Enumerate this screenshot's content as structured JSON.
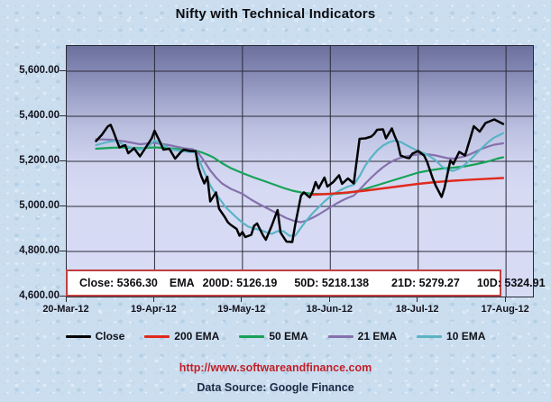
{
  "title": "Nifty with Technical Indicators",
  "info_box": {
    "close": "Close: 5366.30",
    "ema": "EMA",
    "d200": "200D: 5126.19",
    "d50": "50D: 5218.138",
    "d21": "21D: 5279.27",
    "d10": "10D: 5324.91"
  },
  "legend": {
    "items": [
      {
        "label": "Close",
        "color": "#000000"
      },
      {
        "label": "200 EMA",
        "color": "#e02a1d"
      },
      {
        "label": "50 EMA",
        "color": "#17a258"
      },
      {
        "label": "21 EMA",
        "color": "#8571ad"
      },
      {
        "label": "10 EMA",
        "color": "#5ab4c5"
      }
    ]
  },
  "footer": {
    "url": "http://www.softwareandfinance.com",
    "source": "Data Source: Google Finance"
  },
  "colors": {
    "grid": "#2b2b38",
    "plot_border": "#2b2b38",
    "info_border": "#c04040",
    "title_text": "#0c0c10",
    "axis_text": "#13131e",
    "url_text": "#c01f28",
    "source_text": "#1e2a46"
  },
  "chart_data": {
    "type": "line",
    "title": "Nifty with Technical Indicators",
    "xlabel": "",
    "ylabel": "",
    "grid": true,
    "legend_position": "bottom",
    "x_axis": {
      "tick_labels": [
        "20-Mar-12",
        "19-Apr-12",
        "19-May-12",
        "18-Jun-12",
        "18-Jul-12",
        "17-Aug-12"
      ],
      "tick_days": [
        0,
        30,
        60,
        90,
        120,
        150
      ],
      "max_day": 159.2
    },
    "y_axis": {
      "ticks": [
        5600,
        5400,
        5200,
        5000,
        4800,
        4600
      ],
      "tick_labels": [
        "5,600.00",
        "5,400.00",
        "5,200.00",
        "5,000.00",
        "4,800.00",
        "4,600.00"
      ],
      "min": 4600,
      "top_value": 5712
    },
    "series": [
      {
        "name": "50 EMA",
        "color": "#17a258",
        "width": 2.2,
        "points": [
          [
            10,
            5256
          ],
          [
            15,
            5260
          ],
          [
            20,
            5262
          ],
          [
            25,
            5258
          ],
          [
            30,
            5262
          ],
          [
            35,
            5258
          ],
          [
            40,
            5252
          ],
          [
            44,
            5248
          ],
          [
            46,
            5240
          ],
          [
            48,
            5230
          ],
          [
            50,
            5218
          ],
          [
            53,
            5192
          ],
          [
            56,
            5170
          ],
          [
            60,
            5148
          ],
          [
            64,
            5128
          ],
          [
            68,
            5110
          ],
          [
            71,
            5096
          ],
          [
            74,
            5082
          ],
          [
            77,
            5070
          ],
          [
            80,
            5062
          ],
          [
            84,
            5056
          ],
          [
            88,
            5054
          ],
          [
            92,
            5056
          ],
          [
            96,
            5060
          ],
          [
            100,
            5070
          ],
          [
            104,
            5086
          ],
          [
            108,
            5102
          ],
          [
            112,
            5118
          ],
          [
            116,
            5134
          ],
          [
            120,
            5150
          ],
          [
            124,
            5160
          ],
          [
            128,
            5168
          ],
          [
            132,
            5172
          ],
          [
            136,
            5178
          ],
          [
            140,
            5188
          ],
          [
            144,
            5200
          ],
          [
            147,
            5212
          ],
          [
            149,
            5218
          ]
        ]
      },
      {
        "name": "21 EMA",
        "color": "#8571ad",
        "width": 2.2,
        "points": [
          [
            10,
            5298
          ],
          [
            15,
            5296
          ],
          [
            20,
            5288
          ],
          [
            25,
            5276
          ],
          [
            30,
            5282
          ],
          [
            35,
            5272
          ],
          [
            40,
            5258
          ],
          [
            43,
            5254
          ],
          [
            45,
            5236
          ],
          [
            47,
            5200
          ],
          [
            49,
            5160
          ],
          [
            51,
            5128
          ],
          [
            53,
            5102
          ],
          [
            56,
            5078
          ],
          [
            60,
            5056
          ],
          [
            63,
            5030
          ],
          [
            66,
            5008
          ],
          [
            69,
            4988
          ],
          [
            72,
            4968
          ],
          [
            75,
            4948
          ],
          [
            78,
            4934
          ],
          [
            80,
            4930
          ],
          [
            82,
            4938
          ],
          [
            84,
            4950
          ],
          [
            86,
            4964
          ],
          [
            88,
            4980
          ],
          [
            90,
            4996
          ],
          [
            92,
            5012
          ],
          [
            94,
            5026
          ],
          [
            96,
            5038
          ],
          [
            98,
            5048
          ],
          [
            100,
            5074
          ],
          [
            102,
            5102
          ],
          [
            104,
            5128
          ],
          [
            106,
            5152
          ],
          [
            108,
            5174
          ],
          [
            110,
            5192
          ],
          [
            112,
            5206
          ],
          [
            114,
            5216
          ],
          [
            116,
            5222
          ],
          [
            118,
            5227
          ],
          [
            120,
            5231
          ],
          [
            122,
            5232
          ],
          [
            124,
            5230
          ],
          [
            126,
            5226
          ],
          [
            128,
            5220
          ],
          [
            130,
            5214
          ],
          [
            132,
            5212
          ],
          [
            134,
            5217
          ],
          [
            136,
            5223
          ],
          [
            138,
            5233
          ],
          [
            140,
            5245
          ],
          [
            142,
            5257
          ],
          [
            144,
            5266
          ],
          [
            146,
            5274
          ],
          [
            149,
            5280
          ]
        ]
      },
      {
        "name": "10 EMA",
        "color": "#5ab4c5",
        "width": 2.2,
        "points": [
          [
            10,
            5272
          ],
          [
            14,
            5286
          ],
          [
            17,
            5292
          ],
          [
            20,
            5268
          ],
          [
            23,
            5258
          ],
          [
            25,
            5252
          ],
          [
            28,
            5268
          ],
          [
            30,
            5292
          ],
          [
            33,
            5272
          ],
          [
            36,
            5252
          ],
          [
            39,
            5246
          ],
          [
            42,
            5242
          ],
          [
            44,
            5240
          ],
          [
            45,
            5212
          ],
          [
            46,
            5182
          ],
          [
            47,
            5152
          ],
          [
            48,
            5122
          ],
          [
            49,
            5094
          ],
          [
            50,
            5072
          ],
          [
            52,
            5036
          ],
          [
            53,
            5020
          ],
          [
            54,
            5000
          ],
          [
            56,
            4975
          ],
          [
            58,
            4950
          ],
          [
            60,
            4928
          ],
          [
            62,
            4910
          ],
          [
            64,
            4902
          ],
          [
            66,
            4896
          ],
          [
            68,
            4886
          ],
          [
            70,
            4878
          ],
          [
            72,
            4890
          ],
          [
            74,
            4890
          ],
          [
            76,
            4870
          ],
          [
            78,
            4870
          ],
          [
            79,
            4888
          ],
          [
            80,
            4906
          ],
          [
            82,
            4940
          ],
          [
            84,
            4970
          ],
          [
            86,
            4996
          ],
          [
            88,
            5022
          ],
          [
            90,
            5044
          ],
          [
            92,
            5062
          ],
          [
            94,
            5076
          ],
          [
            96,
            5088
          ],
          [
            98,
            5096
          ],
          [
            100,
            5134
          ],
          [
            102,
            5182
          ],
          [
            104,
            5218
          ],
          [
            106,
            5248
          ],
          [
            108,
            5270
          ],
          [
            110,
            5284
          ],
          [
            112,
            5292
          ],
          [
            114,
            5286
          ],
          [
            116,
            5272
          ],
          [
            118,
            5258
          ],
          [
            120,
            5246
          ],
          [
            122,
            5236
          ],
          [
            124,
            5222
          ],
          [
            126,
            5204
          ],
          [
            128,
            5178
          ],
          [
            130,
            5162
          ],
          [
            132,
            5158
          ],
          [
            134,
            5168
          ],
          [
            136,
            5186
          ],
          [
            138,
            5210
          ],
          [
            140,
            5236
          ],
          [
            142,
            5262
          ],
          [
            144,
            5286
          ],
          [
            146,
            5306
          ],
          [
            148,
            5318
          ],
          [
            149,
            5325
          ]
        ]
      },
      {
        "name": "200 EMA",
        "color": "#e02a1d",
        "width": 2.4,
        "points": [
          [
            84,
            5052
          ],
          [
            90,
            5056
          ],
          [
            96,
            5062
          ],
          [
            102,
            5070
          ],
          [
            108,
            5080
          ],
          [
            114,
            5090
          ],
          [
            120,
            5100
          ],
          [
            126,
            5108
          ],
          [
            132,
            5114
          ],
          [
            138,
            5119
          ],
          [
            144,
            5123
          ],
          [
            149,
            5126
          ]
        ]
      },
      {
        "name": "Close",
        "color": "#000000",
        "width": 2.5,
        "points": [
          [
            10,
            5290
          ],
          [
            12,
            5318
          ],
          [
            14,
            5355
          ],
          [
            15,
            5362
          ],
          [
            16,
            5330
          ],
          [
            17,
            5295
          ],
          [
            18,
            5262
          ],
          [
            20,
            5272
          ],
          [
            21,
            5236
          ],
          [
            23,
            5258
          ],
          [
            24,
            5240
          ],
          [
            25,
            5222
          ],
          [
            27,
            5262
          ],
          [
            29,
            5302
          ],
          [
            30,
            5336
          ],
          [
            32,
            5282
          ],
          [
            33,
            5252
          ],
          [
            35,
            5256
          ],
          [
            37,
            5212
          ],
          [
            39,
            5242
          ],
          [
            40,
            5252
          ],
          [
            42,
            5246
          ],
          [
            44,
            5245
          ],
          [
            45,
            5172
          ],
          [
            46,
            5132
          ],
          [
            47,
            5102
          ],
          [
            48,
            5132
          ],
          [
            49,
            5022
          ],
          [
            51,
            5062
          ],
          [
            52,
            4990
          ],
          [
            54,
            4952
          ],
          [
            55,
            4930
          ],
          [
            56,
            4918
          ],
          [
            58,
            4900
          ],
          [
            59,
            4870
          ],
          [
            60,
            4886
          ],
          [
            61,
            4864
          ],
          [
            63,
            4874
          ],
          [
            64,
            4914
          ],
          [
            65,
            4924
          ],
          [
            67,
            4872
          ],
          [
            68,
            4852
          ],
          [
            70,
            4914
          ],
          [
            72,
            4984
          ],
          [
            73,
            4884
          ],
          [
            75,
            4844
          ],
          [
            77,
            4842
          ],
          [
            78,
            4918
          ],
          [
            80,
            5048
          ],
          [
            81,
            5062
          ],
          [
            83,
            5040
          ],
          [
            84,
            5068
          ],
          [
            85,
            5108
          ],
          [
            86,
            5080
          ],
          [
            88,
            5128
          ],
          [
            89,
            5088
          ],
          [
            91,
            5108
          ],
          [
            93,
            5138
          ],
          [
            94,
            5100
          ],
          [
            96,
            5124
          ],
          [
            98,
            5102
          ],
          [
            100,
            5300
          ],
          [
            102,
            5302
          ],
          [
            104,
            5310
          ],
          [
            105,
            5322
          ],
          [
            106,
            5340
          ],
          [
            108,
            5342
          ],
          [
            109,
            5302
          ],
          [
            111,
            5346
          ],
          [
            112,
            5312
          ],
          [
            113,
            5282
          ],
          [
            114,
            5226
          ],
          [
            116,
            5216
          ],
          [
            117,
            5214
          ],
          [
            118,
            5234
          ],
          [
            120,
            5246
          ],
          [
            122,
            5226
          ],
          [
            123,
            5200
          ],
          [
            125,
            5124
          ],
          [
            126,
            5092
          ],
          [
            128,
            5042
          ],
          [
            129,
            5082
          ],
          [
            131,
            5204
          ],
          [
            132,
            5188
          ],
          [
            134,
            5242
          ],
          [
            136,
            5226
          ],
          [
            138,
            5312
          ],
          [
            139,
            5356
          ],
          [
            141,
            5332
          ],
          [
            143,
            5370
          ],
          [
            146,
            5386
          ],
          [
            149,
            5366
          ]
        ]
      }
    ]
  }
}
